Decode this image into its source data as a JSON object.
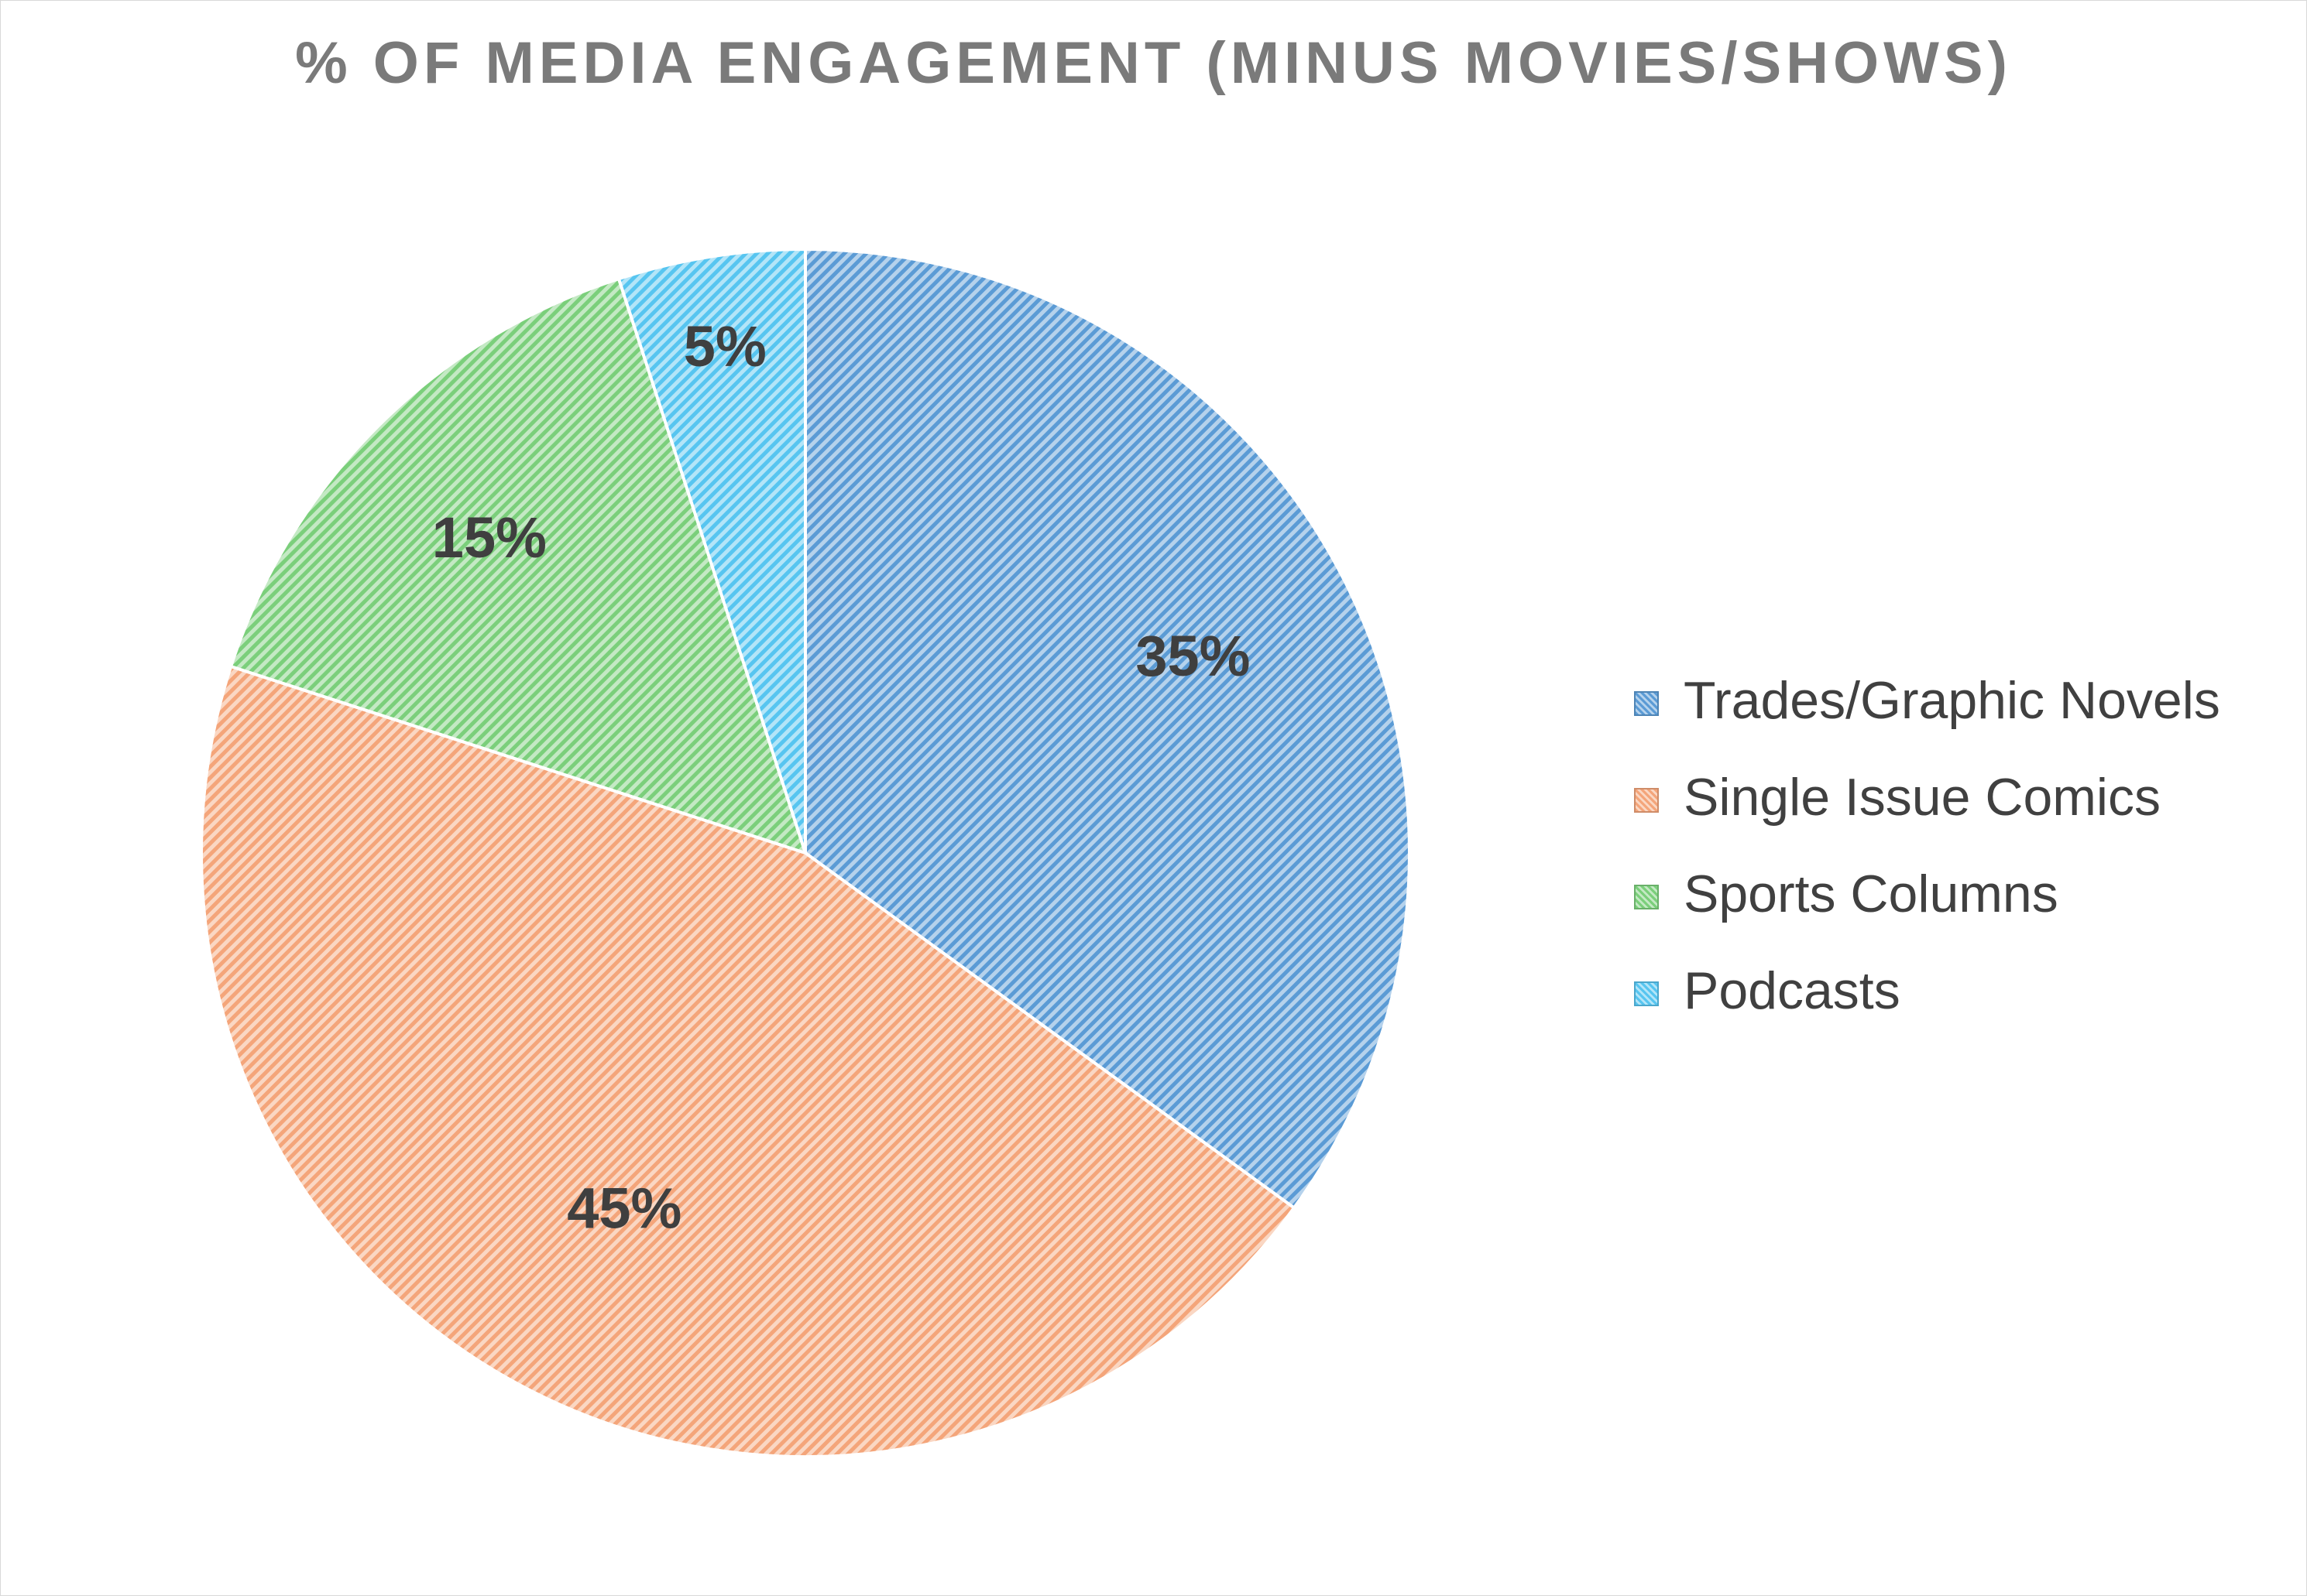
{
  "chart_data": {
    "type": "pie",
    "title": "% OF MEDIA ENGAGEMENT (MINUS MOVIES/SHOWS)",
    "categories": [
      "Trades/Graphic Novels",
      "Single Issue Comics",
      "Sports Columns",
      "Podcasts"
    ],
    "values": [
      35,
      45,
      15,
      5
    ],
    "data_labels": [
      "35%",
      "45%",
      "15%",
      "5%"
    ],
    "colors": [
      "#5b9bd5",
      "#f4a57a",
      "#7bcf7b",
      "#57c5f0"
    ],
    "fill_pattern": "diagonal-hatch",
    "start_angle_deg": 0,
    "direction": "clockwise",
    "legend_position": "right"
  }
}
